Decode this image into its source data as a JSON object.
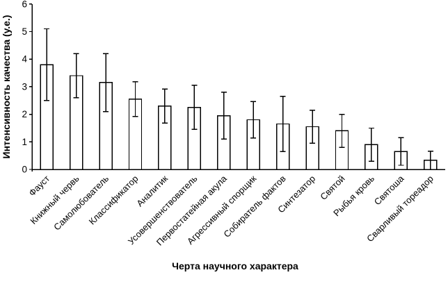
{
  "chart_data": {
    "type": "bar",
    "title": "",
    "xlabel": "Черта научного характера",
    "ylabel": "Интенсивность качества (у.е.)",
    "categories": [
      "Фауст",
      "Книжный червь",
      "Самолюбователь",
      "Классификатор",
      "Аналитик",
      "Усовершенствователь",
      "Первостатейная акула",
      "Агрессивный спорщик",
      "Собиратель фактов",
      "Синтезатор",
      "Святой",
      "Рыбья кровь",
      "Святоша",
      "Сварливый тореадор"
    ],
    "values": [
      3.8,
      3.4,
      3.15,
      2.55,
      2.3,
      2.25,
      1.95,
      1.8,
      1.65,
      1.55,
      1.4,
      0.9,
      0.65,
      0.33
    ],
    "errors": [
      1.3,
      0.8,
      1.05,
      0.63,
      0.62,
      0.8,
      0.85,
      0.66,
      1.0,
      0.6,
      0.6,
      0.6,
      0.5,
      0.33
    ],
    "ylim": [
      0,
      6
    ],
    "yticks": [
      0,
      1,
      2,
      3,
      4,
      5,
      6
    ],
    "bar_fill": "#ffffff",
    "line_color": "#000000",
    "background": "#ffffff",
    "grid": false,
    "legend": "none",
    "error_bars": "symmetric, drawn over bars",
    "category_label_rotation_deg": 45
  }
}
